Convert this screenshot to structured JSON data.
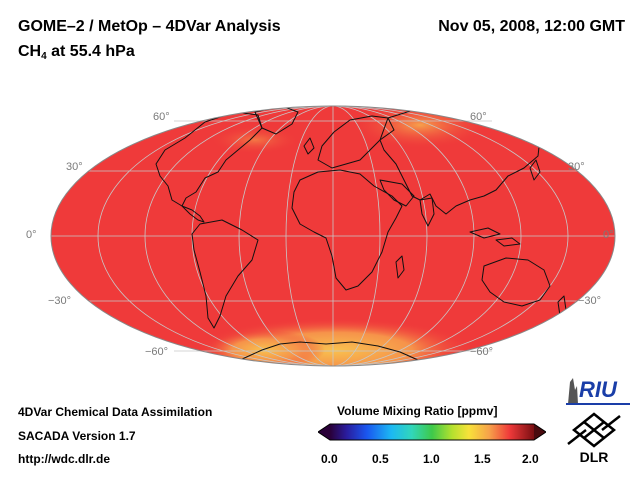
{
  "header": {
    "title": "GOME–2 / MetOp – 4DVar Analysis",
    "datetime": "Nov 05, 2008, 12:00 GMT",
    "species_main": "CH",
    "species_sub": "4",
    "species_rest": " at 55.4 hPa"
  },
  "map": {
    "projection": "Hammer-Aitoff",
    "lat_labels_left": [
      "60°",
      "30°",
      "0°",
      "−30°",
      "−60°"
    ],
    "lat_labels_right": [
      "60°",
      "30°",
      "0°",
      "−30°",
      "−60°"
    ],
    "field_color": "#ef3a3a",
    "high_color": "#f7a04a"
  },
  "colorbar": {
    "title": "Volume Mixing Ratio [ppmv]",
    "ticks": [
      "0.0",
      "0.5",
      "1.0",
      "1.5",
      "2.0"
    ],
    "min": 0.0,
    "max": 2.0
  },
  "footer": {
    "line1": "4DVar Chemical Data Assimilation",
    "line2": "SACADA Version 1.7",
    "line3": "http://wdc.dlr.de"
  },
  "logos": {
    "riu": "RIU",
    "dlr": "DLR"
  }
}
